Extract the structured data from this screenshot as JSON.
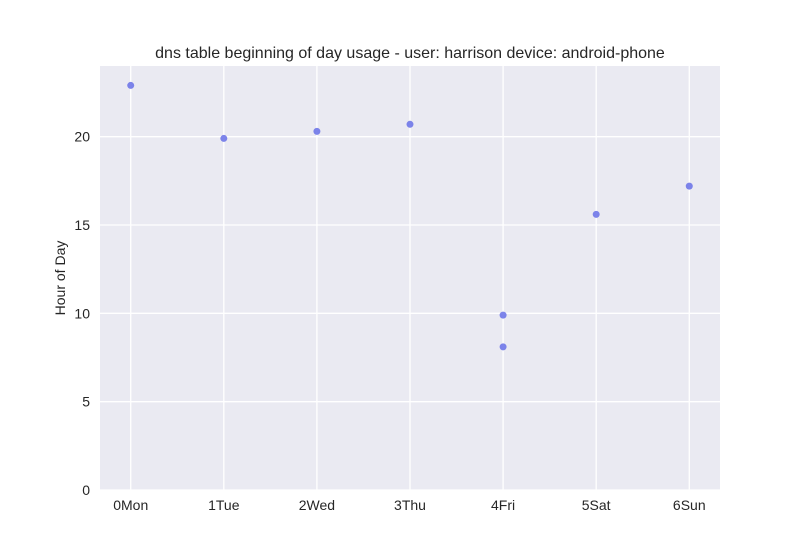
{
  "chart_data": {
    "type": "scatter",
    "title": "dns table beginning of day usage -  user: harrison device: android-phone",
    "xlabel": "",
    "ylabel": "Hour of Day",
    "x_categories": [
      "0Mon",
      "1Tue",
      "2Wed",
      "3Thu",
      "4Fri",
      "5Sat",
      "6Sun"
    ],
    "xlim": [
      -0.33,
      6.33
    ],
    "ylim": [
      0,
      24
    ],
    "y_ticks": [
      0,
      5,
      10,
      15,
      20
    ],
    "grid": true,
    "point_color": "#6f77e8",
    "background_color": "#eaeaf2",
    "points": [
      {
        "x": 0,
        "y": 22.9
      },
      {
        "x": 1,
        "y": 19.9
      },
      {
        "x": 2,
        "y": 20.3
      },
      {
        "x": 3,
        "y": 20.7
      },
      {
        "x": 4,
        "y": 9.9
      },
      {
        "x": 4,
        "y": 8.1
      },
      {
        "x": 5,
        "y": 15.6
      },
      {
        "x": 6,
        "y": 17.2
      }
    ]
  }
}
